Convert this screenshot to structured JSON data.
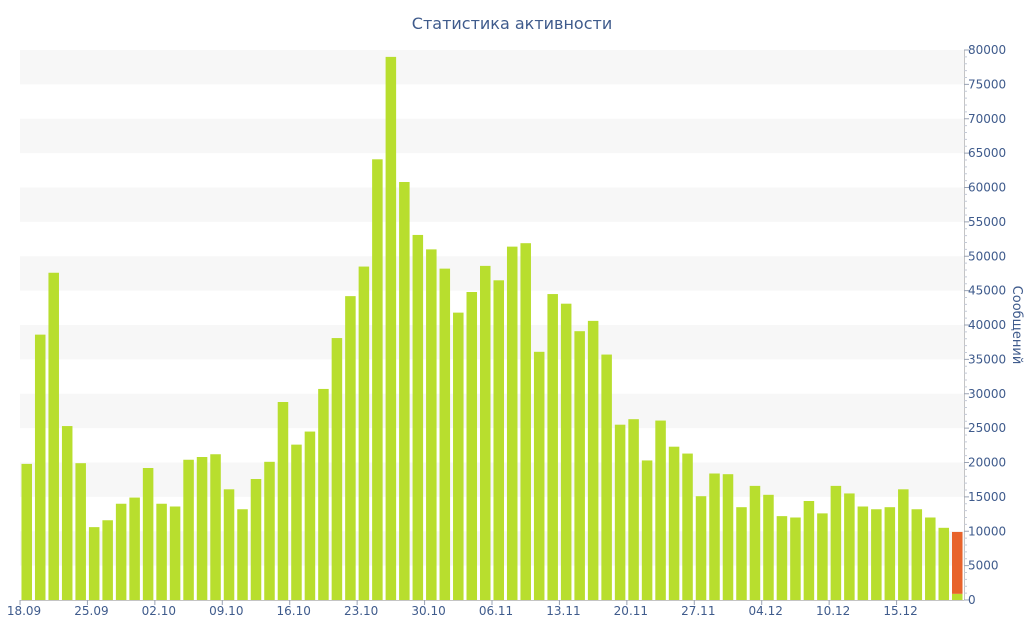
{
  "chart_data": {
    "type": "bar",
    "title": "Статистика активности",
    "ylabel": "Сообщений",
    "ylim": [
      0,
      80000
    ],
    "y_ticks": [
      0,
      5000,
      10000,
      15000,
      20000,
      25000,
      30000,
      35000,
      40000,
      45000,
      50000,
      55000,
      60000,
      65000,
      70000,
      75000,
      80000
    ],
    "x_tick_labels": [
      "18.09",
      "25.09",
      "02.10",
      "09.10",
      "16.10",
      "23.10",
      "30.10",
      "06.11",
      "13.11",
      "20.11",
      "27.11",
      "04.12",
      "10.12",
      "15.12"
    ],
    "grid": "horizontal-bands",
    "legend": "none",
    "bar_color": "#b8de2e",
    "highlight_color": "#e8632b",
    "series": [
      {
        "values": [
          19800,
          38600,
          47600,
          25300,
          19900,
          10600,
          11600,
          14000,
          14900,
          19200,
          14000,
          13600,
          20400,
          20800,
          21200,
          16100,
          13200,
          17600,
          20100,
          28800,
          22600,
          24500,
          30700,
          38100,
          44200,
          48500,
          64100,
          79000,
          60800,
          53100,
          51000,
          48200,
          41800,
          44800,
          48600,
          46500,
          51400,
          51900,
          36100,
          44500,
          43100,
          39100,
          40600,
          35700,
          25500,
          26300,
          20300,
          26100,
          22300,
          21300,
          15100,
          18400,
          18300,
          13500,
          16600,
          15300,
          12200,
          12000,
          14400,
          12600,
          16600,
          15500,
          13600,
          13200,
          13500,
          16100,
          13200,
          12000,
          10500,
          900
        ]
      },
      {
        "values": [
          0,
          0,
          0,
          0,
          0,
          0,
          0,
          0,
          0,
          0,
          0,
          0,
          0,
          0,
          0,
          0,
          0,
          0,
          0,
          0,
          0,
          0,
          0,
          0,
          0,
          0,
          0,
          0,
          0,
          0,
          0,
          0,
          0,
          0,
          0,
          0,
          0,
          0,
          0,
          0,
          0,
          0,
          0,
          0,
          0,
          0,
          0,
          0,
          0,
          0,
          0,
          0,
          0,
          0,
          0,
          0,
          0,
          0,
          0,
          0,
          0,
          0,
          0,
          0,
          0,
          0,
          0,
          0,
          0,
          9000
        ]
      }
    ]
  }
}
